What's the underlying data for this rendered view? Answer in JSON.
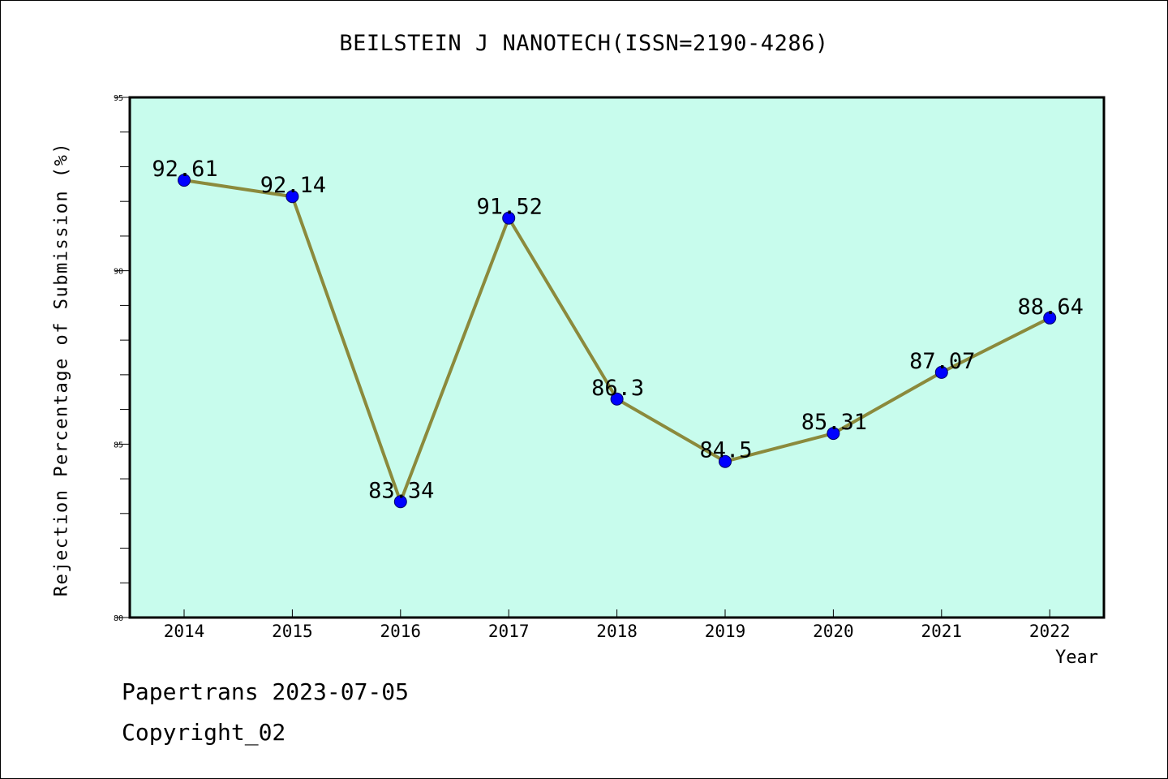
{
  "chart_data": {
    "type": "line",
    "title": "BEILSTEIN J NANOTECH(ISSN=2190-4286)",
    "xlabel": "Year",
    "ylabel": "Rejection Percentage of Submission (%)",
    "categories": [
      "2014",
      "2015",
      "2016",
      "2017",
      "2018",
      "2019",
      "2020",
      "2021",
      "2022"
    ],
    "series": [
      {
        "values": [
          92.61,
          92.14,
          83.34,
          91.52,
          86.3,
          84.5,
          85.31,
          87.07,
          88.64
        ],
        "labels": [
          "92.61",
          "92.14",
          "83.34",
          "91.52",
          "86.3",
          "84.5",
          "85.31",
          "87.07",
          "88.64"
        ]
      }
    ],
    "ylim": [
      80,
      95
    ],
    "yticks": [
      "95",
      "90",
      "85",
      "80"
    ],
    "grid": false,
    "colors": {
      "background": "#c8fced",
      "line": "#8b8a3c",
      "marker": "#0000ff"
    }
  },
  "footer": {
    "line1": "Papertrans 2023-07-05",
    "line2": "Copyright_02"
  }
}
